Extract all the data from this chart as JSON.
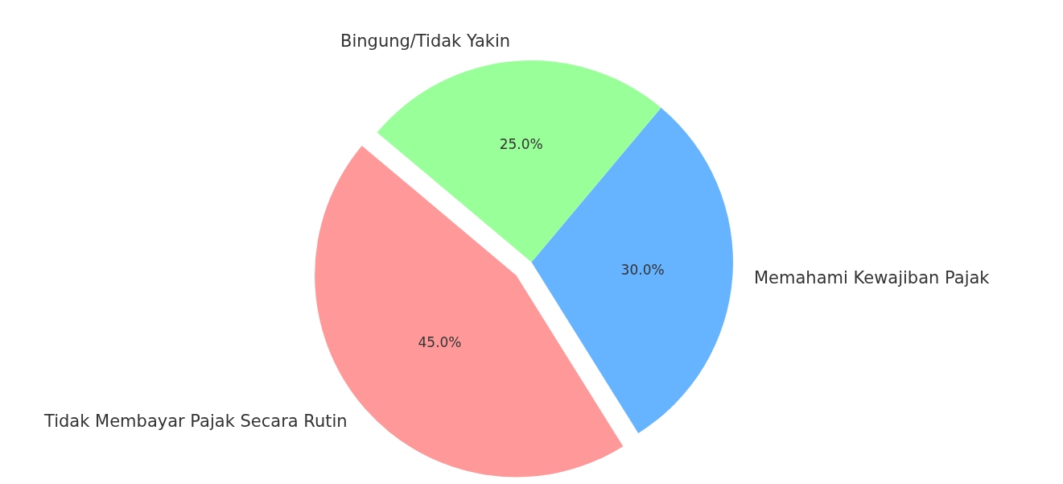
{
  "chart_data": {
    "type": "pie",
    "categories": [
      "Tidak Membayar Pajak Secara Rutin",
      "Memahami Kewajiban Pajak",
      "Bingung/Tidak Yakin"
    ],
    "values": [
      45,
      30,
      25
    ],
    "colors": [
      "#ff9999",
      "#66b3ff",
      "#99ff99"
    ],
    "value_labels": [
      "45.0%",
      "30.0%",
      "25.0%"
    ],
    "legend": false
  }
}
